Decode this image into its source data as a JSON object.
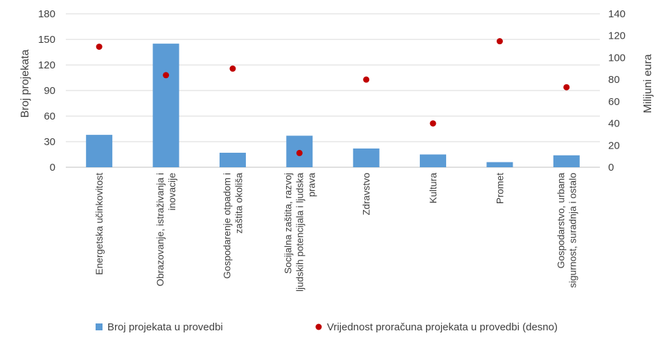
{
  "chart_data": {
    "type": "bar",
    "categories": [
      [
        "Energetska učinkovitost"
      ],
      [
        "Obrazovanje, istraživanja i",
        "inovacije"
      ],
      [
        "Gospodarenje otpadom i",
        "zaštita okoliša"
      ],
      [
        "Socijalna zaštita, razvoj",
        "ljudskih potencijala i ljudska",
        "prava"
      ],
      [
        "Zdravstvo"
      ],
      [
        "Kultura"
      ],
      [
        "Promet"
      ],
      [
        "Gospodarstvo, urbana",
        "sigurnost, suradnja i ostalo"
      ]
    ],
    "series": [
      {
        "name": "Broj projekata u provedbi",
        "kind": "bar",
        "axis": "left",
        "color": "#5B9BD5",
        "values": [
          38,
          145,
          17,
          37,
          22,
          15,
          6,
          14
        ]
      },
      {
        "name": "Vrijednost proračuna projekata u provedbi (desno)",
        "kind": "scatter",
        "axis": "right",
        "color": "#C00000",
        "values": [
          110,
          84,
          90,
          13,
          80,
          40,
          115,
          73
        ]
      }
    ],
    "ylabel": "Broj projekata",
    "y2label": "Milijuni eura",
    "ylim": [
      0,
      180
    ],
    "yticks": [
      "0",
      "30",
      "60",
      "90",
      "120",
      "150",
      "180"
    ],
    "y2lim": [
      0,
      140
    ],
    "y2ticks": [
      "0",
      "20",
      "40",
      "60",
      "80",
      "100",
      "120",
      "140"
    ],
    "grid": true,
    "legend": "bottom"
  }
}
